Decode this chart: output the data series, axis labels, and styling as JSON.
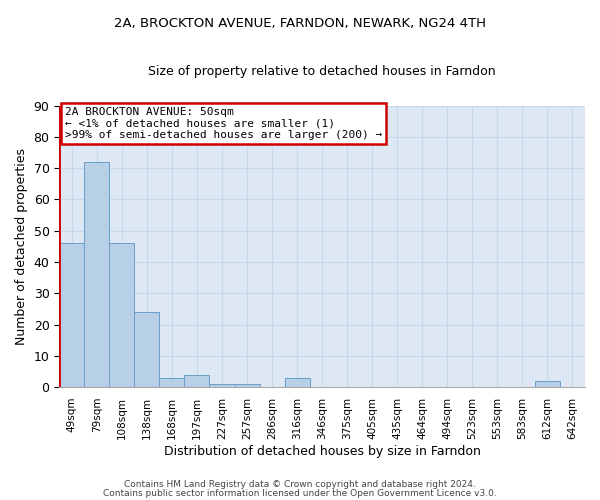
{
  "title1": "2A, BROCKTON AVENUE, FARNDON, NEWARK, NG24 4TH",
  "title2": "Size of property relative to detached houses in Farndon",
  "xlabel": "Distribution of detached houses by size in Farndon",
  "ylabel": "Number of detached properties",
  "categories": [
    "49sqm",
    "79sqm",
    "108sqm",
    "138sqm",
    "168sqm",
    "197sqm",
    "227sqm",
    "257sqm",
    "286sqm",
    "316sqm",
    "346sqm",
    "375sqm",
    "405sqm",
    "435sqm",
    "464sqm",
    "494sqm",
    "523sqm",
    "553sqm",
    "583sqm",
    "612sqm",
    "642sqm"
  ],
  "values": [
    46,
    72,
    46,
    24,
    3,
    4,
    1,
    1,
    0,
    3,
    0,
    0,
    0,
    0,
    0,
    0,
    0,
    0,
    0,
    2,
    0
  ],
  "bar_color": "#b8cfe8",
  "bar_edge_color": "#6a9fc8",
  "annotation_lines": [
    "2A BROCKTON AVENUE: 50sqm",
    "← <1% of detached houses are smaller (1)",
    ">99% of semi-detached houses are larger (200) →"
  ],
  "annotation_box_color": "#ffffff",
  "annotation_box_edge_color": "#cc0000",
  "vline_color": "#cc0000",
  "ylim": [
    0,
    90
  ],
  "yticks": [
    0,
    10,
    20,
    30,
    40,
    50,
    60,
    70,
    80,
    90
  ],
  "grid_color": "#c8d8ea",
  "background_color": "#dde8f4",
  "footer1": "Contains HM Land Registry data © Crown copyright and database right 2024.",
  "footer2": "Contains public sector information licensed under the Open Government Licence v3.0."
}
